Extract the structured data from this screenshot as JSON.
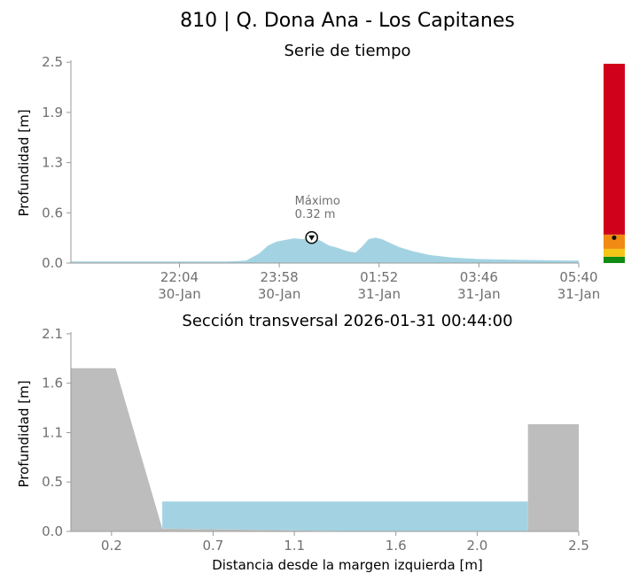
{
  "page": {
    "title": "810 | Q. Dona Ana - Los Capitanes",
    "text_color": "#707070",
    "axis_color": "#9a9a9a"
  },
  "chart_data": [
    {
      "type": "area",
      "subtitle": "Serie de tiempo",
      "ylabel": "Profundidad [m]",
      "xlabel": "",
      "ylim": [
        0,
        2.5
      ],
      "yticks": [
        {
          "value": 0.0,
          "label": "0.0"
        },
        {
          "value": 0.63,
          "label": "0.6"
        },
        {
          "value": 1.26,
          "label": "1.3"
        },
        {
          "value": 1.89,
          "label": "1.9"
        },
        {
          "value": 2.52,
          "label": "2.5"
        }
      ],
      "x_range": [
        "2026-01-30 20:00",
        "2026-01-31 05:40"
      ],
      "xticks": [
        {
          "value": "2026-01-30 22:04",
          "time": "22:04",
          "date": "30-Jan"
        },
        {
          "value": "2026-01-30 23:58",
          "time": "23:58",
          "date": "30-Jan"
        },
        {
          "value": "2026-01-31 01:52",
          "time": "01:52",
          "date": "31-Jan"
        },
        {
          "value": "2026-01-31 03:46",
          "time": "03:46",
          "date": "31-Jan"
        },
        {
          "value": "2026-01-31 05:40",
          "time": "05:40",
          "date": "31-Jan"
        }
      ],
      "fill_color": "#a3d3e3",
      "series": [
        {
          "x": [
            "2026-01-30 20:00",
            "2026-01-30 21:00",
            "2026-01-30 22:00",
            "2026-01-30 23:00",
            "2026-01-30 23:20",
            "2026-01-30 23:35",
            "2026-01-30 23:45",
            "2026-01-30 23:55",
            "2026-01-31 00:05",
            "2026-01-31 00:15",
            "2026-01-31 00:25",
            "2026-01-31 00:35",
            "2026-01-31 00:45",
            "2026-01-31 00:55",
            "2026-01-31 01:05",
            "2026-01-31 01:15",
            "2026-01-31 01:25",
            "2026-01-31 01:32",
            "2026-01-31 01:40",
            "2026-01-31 01:48",
            "2026-01-31 01:55",
            "2026-01-31 02:05",
            "2026-01-31 02:15",
            "2026-01-31 02:30",
            "2026-01-31 02:50",
            "2026-01-31 03:15",
            "2026-01-31 03:45",
            "2026-01-31 04:30",
            "2026-01-31 05:40"
          ],
          "values": [
            0.02,
            0.02,
            0.02,
            0.02,
            0.03,
            0.12,
            0.22,
            0.27,
            0.29,
            0.31,
            0.3,
            0.32,
            0.28,
            0.22,
            0.19,
            0.15,
            0.13,
            0.2,
            0.3,
            0.32,
            0.3,
            0.25,
            0.2,
            0.15,
            0.1,
            0.07,
            0.05,
            0.04,
            0.03
          ]
        }
      ],
      "annotation": {
        "label": "Máximo",
        "value_label": "0.32 m",
        "x": "2026-01-31 00:35",
        "y": 0.32
      },
      "alert_bar": {
        "levels": [
          {
            "from": 0.0,
            "to": 0.08,
            "color": "#138a13"
          },
          {
            "from": 0.08,
            "to": 0.18,
            "color": "#f5c518"
          },
          {
            "from": 0.18,
            "to": 0.36,
            "color": "#f08a12"
          },
          {
            "from": 0.36,
            "to": 2.52,
            "color": "#d0021b"
          }
        ],
        "marker_value": 0.32
      }
    },
    {
      "type": "area",
      "title": "Sección transversal 2026-01-31 00:44:00",
      "xlabel": "Distancia desde la margen izquierda [m]",
      "ylabel": "Profundidad [m]",
      "xlim": [
        0,
        2.5
      ],
      "ylim": [
        0,
        2.1
      ],
      "xticks": [
        {
          "value": 0.2,
          "label": "0.2"
        },
        {
          "value": 0.7,
          "label": "0.7"
        },
        {
          "value": 1.1,
          "label": "1.1"
        },
        {
          "value": 1.6,
          "label": "1.6"
        },
        {
          "value": 2.0,
          "label": "2.0"
        },
        {
          "value": 2.5,
          "label": "2.5"
        }
      ],
      "yticks": [
        {
          "value": 0.0,
          "label": "0.0"
        },
        {
          "value": 0.53,
          "label": "0.5"
        },
        {
          "value": 1.06,
          "label": "1.1"
        },
        {
          "value": 1.59,
          "label": "1.6"
        },
        {
          "value": 2.12,
          "label": "2.1"
        }
      ],
      "ground_color": "#bdbdbd",
      "water_color": "#a3d3e3",
      "water_level": 0.32,
      "ground_profile": {
        "x": [
          0,
          0.22,
          0.45,
          1.5,
          2.25,
          2.25,
          2.5,
          2.5,
          0
        ],
        "y": [
          1.75,
          1.75,
          0.03,
          0.0,
          0.0,
          1.15,
          1.15,
          0,
          0
        ]
      },
      "water_profile": {
        "x": [
          0.45,
          2.25,
          2.25,
          1.5,
          0.45
        ],
        "y": [
          0.32,
          0.32,
          0.0,
          0.0,
          0.03
        ]
      }
    }
  ]
}
